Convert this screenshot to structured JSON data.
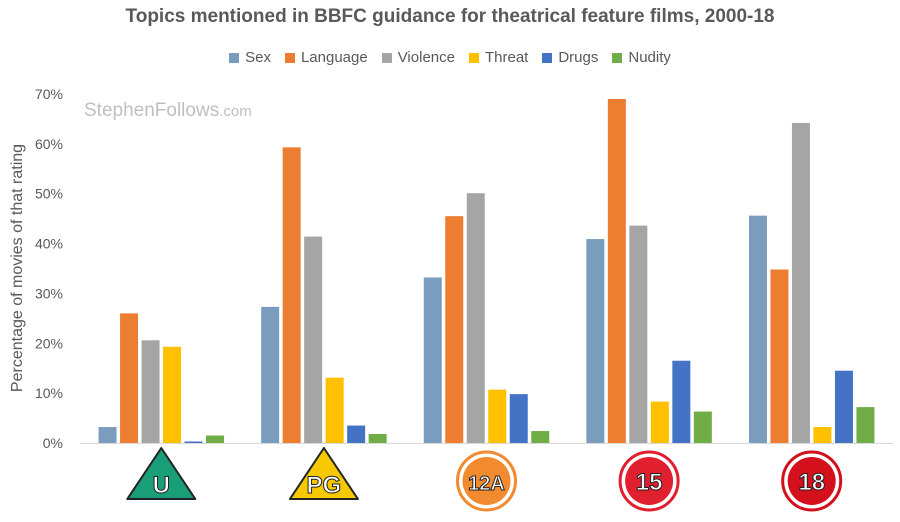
{
  "chart_data": {
    "type": "bar",
    "title": "Topics mentioned in BBFC guidance for theatrical feature films, 2000-18",
    "ylabel": "Percentage of movies of that rating",
    "ylim": [
      0,
      70
    ],
    "yticks": [
      "0%",
      "10%",
      "20%",
      "30%",
      "40%",
      "50%",
      "60%",
      "70%"
    ],
    "categories": [
      "U",
      "PG",
      "12A",
      "15",
      "18"
    ],
    "legend_position": "top",
    "series": [
      {
        "name": "Sex",
        "color": "#7a9dbd",
        "values": [
          3.2,
          27.3,
          33.2,
          40.9,
          45.6
        ]
      },
      {
        "name": "Language",
        "color": "#ed7d31",
        "values": [
          26.0,
          59.3,
          45.5,
          69.0,
          34.8
        ]
      },
      {
        "name": "Violence",
        "color": "#a5a5a5",
        "values": [
          20.6,
          41.4,
          50.1,
          43.6,
          64.2
        ]
      },
      {
        "name": "Threat",
        "color": "#ffc000",
        "values": [
          19.3,
          13.1,
          10.7,
          8.3,
          3.2
        ]
      },
      {
        "name": "Drugs",
        "color": "#4472c4",
        "values": [
          0.3,
          3.5,
          9.8,
          16.5,
          14.5
        ]
      },
      {
        "name": "Nudity",
        "color": "#70ad47",
        "values": [
          1.5,
          1.8,
          2.4,
          6.3,
          7.2
        ]
      }
    ]
  },
  "watermark": {
    "main": "StephenFollows",
    "suffix": ".com"
  },
  "badges": [
    {
      "label": "U",
      "shape": "triangle",
      "color": "#1a9e78"
    },
    {
      "label": "PG",
      "shape": "triangle",
      "color": "#f5c800"
    },
    {
      "label": "12A",
      "shape": "circle",
      "color": "#f28a30"
    },
    {
      "label": "15",
      "shape": "circle",
      "color": "#e0202f"
    },
    {
      "label": "18",
      "shape": "circle",
      "color": "#d3101c"
    }
  ]
}
